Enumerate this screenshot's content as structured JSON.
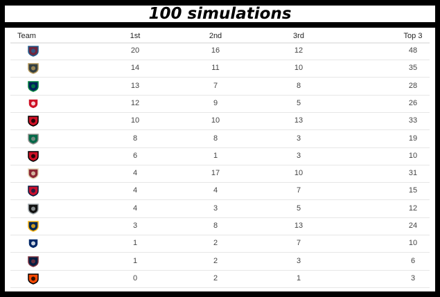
{
  "title": "100 simulations",
  "table": {
    "headers": [
      "Team",
      "1st",
      "2nd",
      "3rd",
      "Top 3"
    ],
    "rows": [
      {
        "team_icon": "colorado-avalanche-logo-icon",
        "color": "#6f263d",
        "color2": "#236192",
        "values": [
          "20",
          "16",
          "12",
          "48"
        ]
      },
      {
        "team_icon": "vegas-golden-knights-logo-icon",
        "color": "#333f42",
        "color2": "#b4975a",
        "values": [
          "14",
          "11",
          "10",
          "35"
        ]
      },
      {
        "team_icon": "vancouver-canucks-logo-icon",
        "color": "#00205b",
        "color2": "#00843d",
        "values": [
          "13",
          "7",
          "8",
          "28"
        ]
      },
      {
        "team_icon": "detroit-red-wings-logo-icon",
        "color": "#ce1126",
        "color2": "#ffffff",
        "values": [
          "12",
          "9",
          "5",
          "26"
        ]
      },
      {
        "team_icon": "new-jersey-devils-logo-icon",
        "color": "#ce1126",
        "color2": "#000000",
        "values": [
          "10",
          "10",
          "13",
          "33"
        ]
      },
      {
        "team_icon": "dallas-stars-logo-icon",
        "color": "#006847",
        "color2": "#8f8f8c",
        "values": [
          "8",
          "8",
          "3",
          "19"
        ]
      },
      {
        "team_icon": "carolina-hurricanes-logo-icon",
        "color": "#ce1126",
        "color2": "#000000",
        "values": [
          "6",
          "1",
          "3",
          "10"
        ]
      },
      {
        "team_icon": "arizona-coyotes-logo-icon",
        "color": "#8c2633",
        "color2": "#e2d6b5",
        "values": [
          "4",
          "17",
          "10",
          "31"
        ]
      },
      {
        "team_icon": "florida-panthers-logo-icon",
        "color": "#c8102e",
        "color2": "#041e42",
        "values": [
          "4",
          "4",
          "7",
          "15"
        ]
      },
      {
        "team_icon": "los-angeles-kings-logo-icon",
        "color": "#111111",
        "color2": "#a2aaad",
        "values": [
          "4",
          "3",
          "5",
          "12"
        ]
      },
      {
        "team_icon": "buffalo-sabres-logo-icon",
        "color": "#002654",
        "color2": "#fcb514",
        "values": [
          "3",
          "8",
          "13",
          "24"
        ]
      },
      {
        "team_icon": "tampa-bay-lightning-logo-icon",
        "color": "#002868",
        "color2": "#ffffff",
        "values": [
          "1",
          "2",
          "7",
          "10"
        ]
      },
      {
        "team_icon": "winnipeg-jets-logo-icon",
        "color": "#041e42",
        "color2": "#7b303e",
        "values": [
          "1",
          "2",
          "3",
          "6"
        ]
      },
      {
        "team_icon": "philadelphia-flyers-logo-icon",
        "color": "#f74902",
        "color2": "#000000",
        "values": [
          "0",
          "2",
          "1",
          "3"
        ]
      }
    ]
  }
}
